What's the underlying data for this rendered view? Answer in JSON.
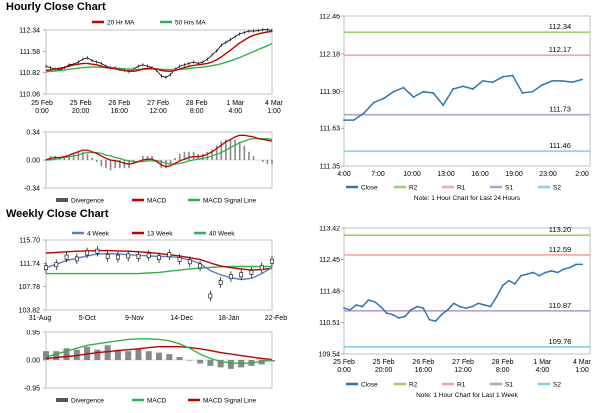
{
  "hourly": {
    "title": "Hourly Close Chart",
    "main_legend": [
      "20 Hr MA",
      "50 Hrs MA"
    ],
    "sub_legend": [
      "Divergence",
      "MACD",
      "MACD Signal Line"
    ],
    "pivot_note": "Note: 1 Hour Chart for Last 24 Hours",
    "pivot_legend": [
      "Close",
      "R2",
      "R1",
      "S1",
      "S2"
    ]
  },
  "weekly": {
    "title": "Weekly Close Chart",
    "main_legend": [
      "4 Week",
      "13 Week",
      "40 Week"
    ],
    "sub_legend": [
      "Divergence",
      "MACD",
      "MACD Signal Line"
    ],
    "pivot_note": "Note: 1 Hour Chart for Last 1 Week",
    "pivot_legend": [
      "Close",
      "R2",
      "R1",
      "S1",
      "S2"
    ]
  },
  "colors": {
    "close": "#2e75b6",
    "ma_red": "#c00000",
    "ma_green": "#2db34a",
    "ma_blue": "#5b7fc4",
    "r2": "#9bd36b",
    "r1": "#f4a6a6",
    "s1": "#b79fd0",
    "s2": "#7fd0e2",
    "divergence": "#888888",
    "price": "#000000"
  },
  "chart_data": [
    {
      "id": "hourly_close",
      "type": "line",
      "title": "Hourly Close Chart",
      "x_labels": [
        [
          "25 Feb",
          "0:00"
        ],
        [
          "25 Feb",
          "20:00"
        ],
        [
          "26 Feb",
          "16:00"
        ],
        [
          "27 Feb",
          "12:00"
        ],
        [
          "28 Feb",
          "8:00"
        ],
        [
          "1 Mar",
          "4:00"
        ],
        [
          "4 Mar",
          "1:00"
        ]
      ],
      "y_ticks": [
        "112.34",
        "111.58",
        "110.82",
        "110.06"
      ],
      "ylim": [
        110.06,
        112.34
      ],
      "series": [
        {
          "name": "Price",
          "values": [
            111.05,
            111.0,
            110.95,
            110.92,
            111.0,
            111.1,
            111.12,
            111.2,
            111.3,
            111.35,
            111.25,
            111.2,
            111.15,
            111.05,
            111.0,
            111.0,
            110.95,
            110.9,
            110.85,
            110.95,
            111.05,
            111.1,
            111.05,
            111.0,
            110.9,
            110.7,
            110.65,
            110.75,
            110.95,
            111.05,
            111.1,
            111.15,
            111.2,
            111.15,
            111.2,
            111.3,
            111.45,
            111.6,
            111.8,
            111.9,
            112.0,
            112.1,
            112.2,
            112.25,
            112.3,
            112.3,
            112.32,
            112.35,
            112.35,
            112.33
          ]
        },
        {
          "name": "20 Hr MA",
          "values": [
            110.9,
            110.92,
            110.95,
            110.98,
            111.0,
            111.05,
            111.1,
            111.12,
            111.15,
            111.15,
            111.12,
            111.1,
            111.05,
            111.0,
            110.98,
            110.96,
            110.92,
            110.9,
            110.88,
            110.87,
            110.9,
            110.95,
            110.97,
            110.98,
            110.95,
            110.9,
            110.88,
            110.87,
            110.9,
            110.95,
            111.0,
            111.05,
            111.08,
            111.1,
            111.12,
            111.15,
            111.2,
            111.28,
            111.38,
            111.5,
            111.62,
            111.75,
            111.88,
            111.98,
            112.08,
            112.15,
            112.2,
            112.24,
            112.27,
            112.29
          ]
        },
        {
          "name": "50 Hrs MA",
          "values": [
            110.85,
            110.87,
            110.88,
            110.9,
            110.92,
            110.94,
            110.96,
            110.98,
            111.0,
            111.01,
            111.02,
            111.02,
            111.01,
            111.0,
            110.99,
            110.98,
            110.97,
            110.96,
            110.95,
            110.94,
            110.94,
            110.94,
            110.95,
            110.95,
            110.95,
            110.94,
            110.93,
            110.93,
            110.93,
            110.94,
            110.95,
            110.97,
            110.99,
            111.0,
            111.02,
            111.04,
            111.07,
            111.1,
            111.14,
            111.19,
            111.24,
            111.3,
            111.36,
            111.43,
            111.5,
            111.57,
            111.64,
            111.71,
            111.78,
            111.86
          ]
        }
      ]
    },
    {
      "id": "hourly_macd",
      "type": "line",
      "y_ticks": [
        "0.34",
        "0.00",
        "-0.34"
      ],
      "ylim": [
        -0.34,
        0.34
      ],
      "series": [
        {
          "name": "MACD",
          "values": [
            0.0,
            0.02,
            0.03,
            0.03,
            0.04,
            0.06,
            0.08,
            0.1,
            0.12,
            0.12,
            0.1,
            0.08,
            0.05,
            0.02,
            0.0,
            -0.01,
            -0.02,
            -0.04,
            -0.05,
            -0.04,
            -0.02,
            0.0,
            0.01,
            0.01,
            -0.02,
            -0.06,
            -0.08,
            -0.07,
            -0.04,
            -0.01,
            0.01,
            0.03,
            0.04,
            0.04,
            0.05,
            0.07,
            0.1,
            0.14,
            0.18,
            0.22,
            0.25,
            0.28,
            0.3,
            0.3,
            0.29,
            0.28,
            0.26,
            0.25,
            0.24,
            0.23
          ]
        },
        {
          "name": "MACD Signal Line",
          "values": [
            0.0,
            0.0,
            0.01,
            0.02,
            0.03,
            0.04,
            0.05,
            0.06,
            0.08,
            0.09,
            0.09,
            0.09,
            0.08,
            0.06,
            0.05,
            0.03,
            0.02,
            0.0,
            -0.01,
            -0.02,
            -0.02,
            -0.02,
            -0.01,
            -0.01,
            -0.01,
            -0.02,
            -0.04,
            -0.05,
            -0.05,
            -0.04,
            -0.03,
            -0.01,
            0.0,
            0.01,
            0.02,
            0.03,
            0.05,
            0.07,
            0.09,
            0.12,
            0.15,
            0.18,
            0.21,
            0.23,
            0.25,
            0.26,
            0.26,
            0.26,
            0.26,
            0.25
          ]
        }
      ]
    },
    {
      "id": "hourly_pivot",
      "type": "line",
      "x_labels": [
        "4:00",
        "7:00",
        "10:00",
        "13:00",
        "16:00",
        "19:00",
        "23:00",
        "2:00"
      ],
      "y_ticks": [
        "112.46",
        "112.18",
        "111.90",
        "111.63",
        "111.35"
      ],
      "ylim": [
        111.35,
        112.46
      ],
      "levels": [
        {
          "name": "R2",
          "value": 112.34
        },
        {
          "name": "R1",
          "value": 112.17
        },
        {
          "name": "S1",
          "value": 111.73
        },
        {
          "name": "S2",
          "value": 111.46
        }
      ],
      "series": [
        {
          "name": "Close",
          "values": [
            111.69,
            111.69,
            111.74,
            111.82,
            111.85,
            111.9,
            111.93,
            111.86,
            111.9,
            111.89,
            111.8,
            111.92,
            111.94,
            111.92,
            111.98,
            111.97,
            112.01,
            112.02,
            111.89,
            111.9,
            111.95,
            111.98,
            111.98,
            111.97,
            111.99
          ]
        }
      ]
    },
    {
      "id": "weekly_close",
      "type": "line",
      "title": "Weekly Close Chart",
      "x_labels": [
        "31-Aug",
        "5-Oct",
        "9-Nov",
        "14-Dec",
        "18-Jan",
        "22-Feb"
      ],
      "y_ticks": [
        "115.70",
        "111.74",
        "107.78",
        "103.82"
      ],
      "ylim": [
        103.82,
        115.7
      ],
      "series": [
        {
          "name": "Price",
          "values": [
            111.0,
            111.5,
            112.8,
            112.5,
            113.5,
            113.8,
            112.9,
            112.8,
            113.0,
            112.9,
            113.1,
            112.7,
            113.2,
            112.4,
            112.0,
            111.3,
            106.2,
            108.5,
            109.5,
            109.8,
            110.2,
            111.0,
            112.1
          ]
        },
        {
          "name": "4 Week",
          "values": [
            111.0,
            111.6,
            112.2,
            112.6,
            113.0,
            113.3,
            113.4,
            113.3,
            113.2,
            113.1,
            113.0,
            112.9,
            112.9,
            112.7,
            112.3,
            111.7,
            110.5,
            109.8,
            109.3,
            109.0,
            109.2,
            110.0,
            111.0
          ]
        },
        {
          "name": "13 Week",
          "values": [
            113.5,
            113.6,
            113.7,
            113.8,
            113.85,
            113.9,
            113.9,
            113.85,
            113.8,
            113.7,
            113.6,
            113.4,
            113.2,
            113.0,
            112.7,
            112.4,
            111.8,
            111.3,
            111.0,
            110.8,
            110.6,
            110.7,
            110.9
          ]
        },
        {
          "name": "40 Week",
          "values": [
            110.0,
            110.0,
            110.0,
            110.0,
            110.0,
            110.0,
            110.0,
            110.0,
            110.0,
            110.0,
            110.1,
            110.2,
            110.4,
            110.6,
            110.8,
            110.95,
            111.05,
            111.15,
            111.2,
            111.2,
            111.2,
            111.2,
            111.2
          ]
        }
      ]
    },
    {
      "id": "weekly_macd",
      "type": "line",
      "y_ticks": [
        "0.95",
        "0.00",
        "-0.95"
      ],
      "ylim": [
        -0.95,
        0.95
      ],
      "series": [
        {
          "name": "MACD",
          "values": [
            0.1,
            0.2,
            0.3,
            0.4,
            0.5,
            0.55,
            0.6,
            0.65,
            0.7,
            0.72,
            0.72,
            0.7,
            0.65,
            0.55,
            0.4,
            0.2,
            0.05,
            -0.05,
            -0.1,
            -0.12,
            -0.1,
            -0.05,
            0.0
          ]
        },
        {
          "name": "MACD Signal Line",
          "values": [
            0.05,
            0.08,
            0.12,
            0.15,
            0.2,
            0.25,
            0.28,
            0.32,
            0.35,
            0.38,
            0.42,
            0.45,
            0.45,
            0.45,
            0.42,
            0.38,
            0.32,
            0.25,
            0.2,
            0.15,
            0.1,
            0.05,
            0.02
          ]
        },
        {
          "name": "Divergence",
          "values": [
            0.3,
            0.3,
            0.4,
            0.35,
            0.45,
            0.35,
            0.5,
            0.35,
            0.3,
            0.38,
            0.3,
            0.25,
            0.2,
            0.1,
            -0.02,
            -0.12,
            -0.2,
            -0.25,
            -0.3,
            -0.25,
            -0.2,
            -0.15,
            -0.05
          ]
        }
      ]
    },
    {
      "id": "weekly_pivot",
      "type": "line",
      "x_labels": [
        [
          "25 Feb",
          "0:00"
        ],
        [
          "25 Feb",
          "20:00"
        ],
        [
          "26 Feb",
          "16:00"
        ],
        [
          "27 Feb",
          "12:00"
        ],
        [
          "28 Feb",
          "8:00"
        ],
        [
          "1 Mar",
          "4:00"
        ],
        [
          "4 Mar",
          "1:00"
        ]
      ],
      "y_ticks": [
        "113.42",
        "112.45",
        "111.48",
        "110.51",
        "109.54"
      ],
      "ylim": [
        109.54,
        113.42
      ],
      "levels": [
        {
          "name": "R2",
          "value": 113.2
        },
        {
          "name": "R1",
          "value": 112.59
        },
        {
          "name": "S1",
          "value": 110.87
        },
        {
          "name": "S2",
          "value": 109.76
        }
      ],
      "series": [
        {
          "name": "Close",
          "values": [
            110.95,
            110.9,
            111.05,
            111.0,
            111.2,
            111.15,
            111.0,
            110.8,
            110.75,
            110.65,
            110.7,
            110.9,
            111.0,
            110.95,
            110.6,
            110.55,
            110.75,
            110.9,
            111.1,
            111.0,
            110.95,
            111.0,
            111.1,
            111.05,
            111.0,
            111.3,
            111.65,
            111.8,
            111.7,
            111.95,
            112.0,
            112.05,
            111.95,
            112.05,
            112.1,
            112.05,
            112.15,
            112.2,
            112.3,
            112.3
          ]
        }
      ]
    }
  ]
}
